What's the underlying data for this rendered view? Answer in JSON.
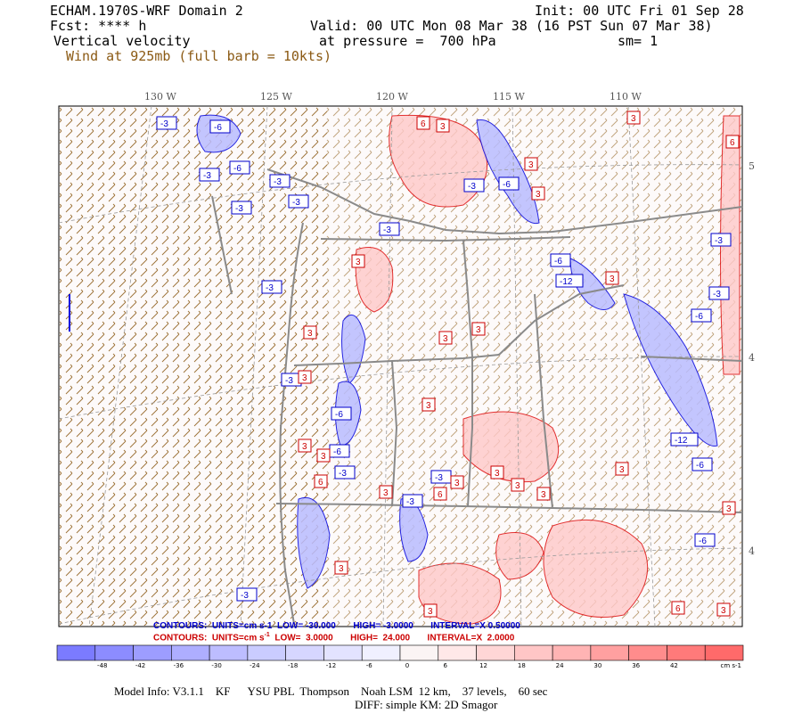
{
  "header": {
    "model": "ECHAM.1970S-WRF Domain 2",
    "init": "Init: 00 UTC Fri 01 Sep 28",
    "fcst": "Fcst: **** h",
    "valid": "Valid: 00 UTC Mon 08 Mar 38 (16 PST Sun 07 Mar 38)",
    "field": "Vertical velocity",
    "pressure": "at pressure =  700 hPa",
    "sm": "sm= 1",
    "wind": "Wind at 925mb (full barb = 10kts)"
  },
  "map": {
    "lon_labels": [
      "130 W",
      "125 W",
      "120 W",
      "115 W",
      "110 W"
    ],
    "lat_labels": [
      "5",
      "4",
      "4"
    ],
    "contour_labels_blue": [
      "-3",
      "-6",
      "-3",
      "-6",
      "-3",
      "-3",
      "-3",
      "-3",
      "-6",
      "-3",
      "-6",
      "-3",
      "-12",
      "-3",
      "-6",
      "-3",
      "-3",
      "-6",
      "-6",
      "-12",
      "-6",
      "-3",
      "-3",
      "-6",
      "-3",
      "-3"
    ],
    "contour_labels_red": [
      "6",
      "3",
      "3",
      "3",
      "6",
      "3",
      "3",
      "3",
      "3",
      "3",
      "3",
      "3",
      "6",
      "3",
      "3",
      "3",
      "3",
      "3",
      "6",
      "3",
      "3",
      "3",
      "3",
      "3",
      "3",
      "6",
      "3",
      "3"
    ],
    "colors": {
      "border": "#8a8a8a",
      "barb": "#8b5a14",
      "neg_line": "#0000dd",
      "pos_line": "#dd0000"
    }
  },
  "contours": {
    "line1": "CONTOURS:  UNITS=cm s-1  LOW= -30.000       HIGH= -3.0000       INTERVAL=X 0.50000",
    "line2": "CONTOURS:  UNITS=cm s",
    "line2_sup": "-1",
    "line2_rest": "  LOW=  3.0000       HIGH=  24.000       INTERVAL=X  2.0000"
  },
  "colorbar": {
    "labels": [
      "-48",
      "-42",
      "-36",
      "-30",
      "-24",
      "-18",
      "-12",
      "-6",
      "0",
      "6",
      "12",
      "18",
      "24",
      "30",
      "36",
      "42"
    ],
    "units": "cm s-1",
    "colors": [
      "#7b7bff",
      "#8c8cff",
      "#9d9dff",
      "#aeaeff",
      "#bdbdff",
      "#caccff",
      "#d6d6ff",
      "#e3e3ff",
      "#f0f0ff",
      "#fbf4f4",
      "#ffe8e8",
      "#ffd6d6",
      "#ffc6c6",
      "#ffb4b4",
      "#ffa0a0",
      "#ff8c8c",
      "#ff7a7a",
      "#ff6a6a"
    ]
  },
  "footer": {
    "line1": "Model Info: V3.1.1    KF      YSU PBL  Thompson    Noah LSM  12 km,    37 levels,    60 sec",
    "line2": "DIFF: simple KM: 2D Smagor"
  }
}
